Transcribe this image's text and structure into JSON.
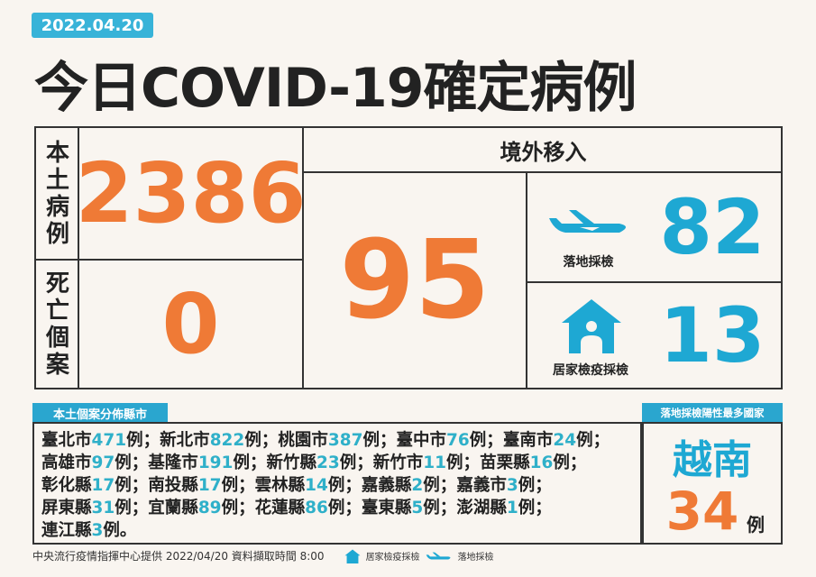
{
  "date": "2022.04.20",
  "title": "今日COVID-19確定病例",
  "colors": {
    "accent_orange": "#ef7a36",
    "accent_teal": "#1ea8d3",
    "background": "#f9f5f0"
  },
  "domestic": {
    "label": "本土病例",
    "value": "2386"
  },
  "deaths": {
    "label": "死亡個案",
    "value": "0"
  },
  "imported": {
    "label": "境外移入",
    "value": "95",
    "airport": {
      "label": "落地採檢",
      "value": "82",
      "icon": "airplane-icon"
    },
    "home": {
      "label": "居家檢疫採檢",
      "value": "13",
      "icon": "house-icon"
    }
  },
  "distribution": {
    "label": "本土個案分佈縣市",
    "unit": "例",
    "items": [
      {
        "city": "臺北市",
        "count": "471"
      },
      {
        "city": "新北市",
        "count": "822"
      },
      {
        "city": "桃園市",
        "count": "387"
      },
      {
        "city": "臺中市",
        "count": "76"
      },
      {
        "city": "臺南市",
        "count": "24"
      },
      {
        "city": "高雄市",
        "count": "97"
      },
      {
        "city": "基隆市",
        "count": "191"
      },
      {
        "city": "新竹縣",
        "count": "23"
      },
      {
        "city": "新竹市",
        "count": "11"
      },
      {
        "city": "苗栗縣",
        "count": "16"
      },
      {
        "city": "彰化縣",
        "count": "17"
      },
      {
        "city": "南投縣",
        "count": "17"
      },
      {
        "city": "雲林縣",
        "count": "14"
      },
      {
        "city": "嘉義縣",
        "count": "2"
      },
      {
        "city": "嘉義市",
        "count": "3"
      },
      {
        "city": "屏東縣",
        "count": "31"
      },
      {
        "city": "宜蘭縣",
        "count": "89"
      },
      {
        "city": "花蓮縣",
        "count": "86"
      },
      {
        "city": "臺東縣",
        "count": "5"
      },
      {
        "city": "澎湖縣",
        "count": "1"
      },
      {
        "city": "連江縣",
        "count": "3"
      }
    ]
  },
  "top_country": {
    "label": "落地採檢陽性最多國家",
    "country": "越南",
    "value": "34",
    "unit": "例"
  },
  "footer": {
    "source": "中央流行疫情指揮中心提供 2022/04/20 資料擷取時間 8:00",
    "legend_home": "居家檢疫採檢",
    "legend_airport": "落地採檢"
  }
}
